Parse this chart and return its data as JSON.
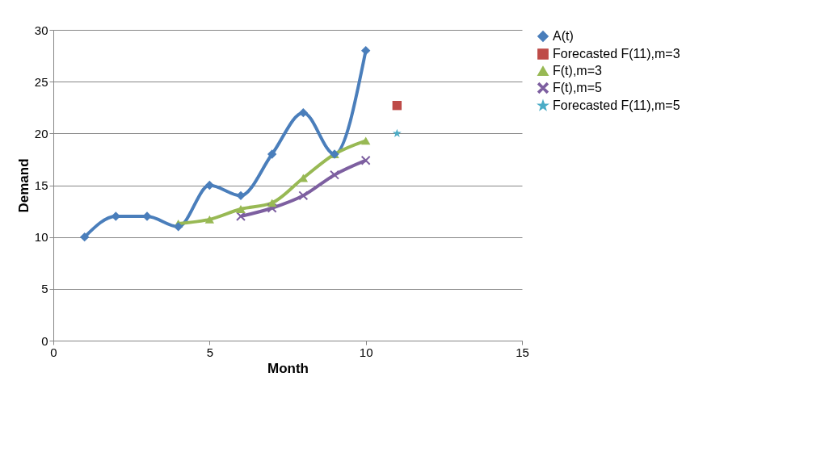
{
  "chart_data": {
    "type": "line",
    "xlabel": "Month",
    "ylabel": "Demand",
    "xlim": [
      0,
      15
    ],
    "xticks": [
      0,
      5,
      10,
      15
    ],
    "ylim": [
      0,
      30
    ],
    "yticks": [
      0,
      5,
      10,
      15,
      20,
      25,
      30
    ],
    "grid": "y",
    "legend": "right",
    "series": [
      {
        "name": "A(t)",
        "type": "line",
        "color": "#4a7ebb",
        "marker": "diamond",
        "x": [
          1,
          2,
          3,
          4,
          5,
          6,
          7,
          8,
          9,
          10
        ],
        "values": [
          10,
          12,
          12,
          11,
          15,
          14,
          18,
          22,
          18,
          28
        ]
      },
      {
        "name": "Forecasted F(11),m=3",
        "type": "scatter",
        "color": "#be4b48",
        "marker": "square",
        "x": [
          11
        ],
        "values": [
          22.7
        ]
      },
      {
        "name": "F(t),m=3",
        "type": "line",
        "color": "#98b954",
        "marker": "triangle",
        "x": [
          4,
          5,
          6,
          7,
          8,
          9,
          10
        ],
        "values": [
          11.3,
          11.7,
          12.7,
          13.3,
          15.7,
          18,
          19.3
        ]
      },
      {
        "name": "F(t),m=5",
        "type": "line",
        "color": "#7d5fa0",
        "marker": "cross",
        "x": [
          6,
          7,
          8,
          9,
          10
        ],
        "values": [
          12,
          12.8,
          14,
          16,
          17.4
        ]
      },
      {
        "name": "Forecasted F(11),m=5",
        "type": "scatter",
        "color": "#4bacc6",
        "marker": "star",
        "x": [
          11
        ],
        "values": [
          20
        ]
      }
    ]
  }
}
